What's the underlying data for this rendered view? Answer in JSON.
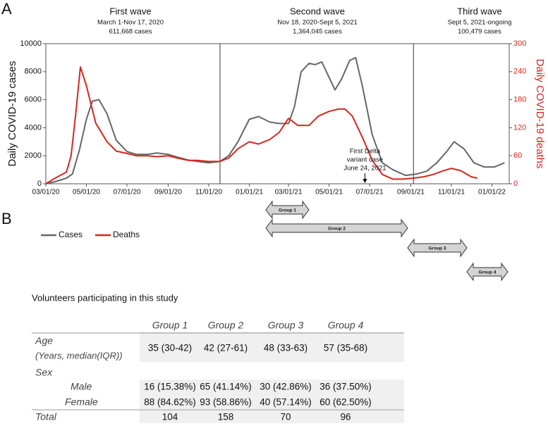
{
  "panel_labels": [
    "A",
    "B"
  ],
  "chart_data": {
    "type": "line",
    "y_label": "Daily COVID-19 cases",
    "y2_label": "Daily COVID-19 deaths",
    "xlim": [
      "2020-03-01",
      "2022-01-27"
    ],
    "xticks": [
      {
        "value": "2020-03-01",
        "label": "03/01/20"
      },
      {
        "value": "2020-05-01",
        "label": "05/01/20"
      },
      {
        "value": "2020-07-01",
        "label": "07/01/20"
      },
      {
        "value": "2020-09-01",
        "label": "09/01/20"
      },
      {
        "value": "2020-11-01",
        "label": "11/01/20"
      },
      {
        "value": "2021-01-01",
        "label": "01/01/21"
      },
      {
        "value": "2021-03-01",
        "label": "03/01/21"
      },
      {
        "value": "2021-05-01",
        "label": "05/01/21"
      },
      {
        "value": "2021-07-01",
        "label": "07/01/21"
      },
      {
        "value": "2021-09-01",
        "label": "09/01/21"
      },
      {
        "value": "2021-11-01",
        "label": "11/01/21"
      },
      {
        "value": "2022-01-01",
        "label": "01/01/22"
      }
    ],
    "ylim": [
      0,
      10000
    ],
    "yticks": [
      0,
      2000,
      4000,
      6000,
      8000,
      10000
    ],
    "y2lim": [
      0,
      300
    ],
    "y2ticks": [
      0,
      60,
      120,
      180,
      240,
      300
    ],
    "y2_color": "#d7261e",
    "vlines": [
      "2020-11-18",
      "2021-09-05"
    ],
    "waves": [
      {
        "title": "First wave",
        "lines": [
          "March 1-Nov 17, 2020",
          "611,668 cases"
        ]
      },
      {
        "title": "Second wave",
        "lines": [
          "Nov 18, 2020-Sept 5, 2021",
          "1,364,045 cases"
        ]
      },
      {
        "title": "Third wave",
        "lines": [
          "Sept 5, 2021-ongoing",
          "100,479 cases"
        ]
      }
    ],
    "annotation": {
      "x": "2021-06-24",
      "lines": [
        "First Delta",
        "variant case",
        "June 24, 2021"
      ]
    },
    "series": [
      {
        "name": "Cases",
        "color": "#666666",
        "x": [
          "2020-03-01",
          "2020-03-15",
          "2020-04-01",
          "2020-04-10",
          "2020-04-20",
          "2020-05-01",
          "2020-05-10",
          "2020-05-20",
          "2020-06-01",
          "2020-06-15",
          "2020-07-01",
          "2020-07-15",
          "2020-08-01",
          "2020-08-15",
          "2020-09-01",
          "2020-09-15",
          "2020-10-01",
          "2020-10-15",
          "2020-11-01",
          "2020-11-18",
          "2020-12-01",
          "2020-12-15",
          "2021-01-01",
          "2021-01-15",
          "2021-02-01",
          "2021-02-15",
          "2021-03-01",
          "2021-03-10",
          "2021-03-20",
          "2021-04-01",
          "2021-04-10",
          "2021-04-20",
          "2021-04-29",
          "2021-05-10",
          "2021-05-20",
          "2021-06-01",
          "2021-06-10",
          "2021-06-20",
          "2021-07-05",
          "2021-07-20",
          "2021-08-05",
          "2021-08-24",
          "2021-09-10",
          "2021-09-25",
          "2021-10-10",
          "2021-10-25",
          "2021-11-05",
          "2021-11-20",
          "2021-12-05",
          "2021-12-20",
          "2022-01-05",
          "2022-01-20"
        ],
        "values": [
          0,
          150,
          400,
          700,
          2300,
          4600,
          5900,
          6000,
          5000,
          3100,
          2300,
          2100,
          2100,
          2200,
          2100,
          1900,
          1700,
          1600,
          1500,
          1600,
          2000,
          3000,
          4600,
          4800,
          4400,
          4300,
          4300,
          5500,
          8000,
          8600,
          8500,
          8700,
          7800,
          6700,
          7500,
          8800,
          9000,
          7000,
          3500,
          1500,
          1000,
          600,
          700,
          900,
          1500,
          2300,
          3000,
          2500,
          1500,
          1200,
          1200,
          1500
        ]
      },
      {
        "name": "Deaths",
        "color": "#d7261e",
        "axis": "y2",
        "x": [
          "2020-03-01",
          "2020-03-15",
          "2020-04-01",
          "2020-04-08",
          "2020-04-15",
          "2020-04-22",
          "2020-05-01",
          "2020-05-15",
          "2020-06-01",
          "2020-06-15",
          "2020-07-01",
          "2020-07-15",
          "2020-08-01",
          "2020-08-15",
          "2020-09-01",
          "2020-09-15",
          "2020-10-01",
          "2020-10-15",
          "2020-11-01",
          "2020-11-18",
          "2020-12-01",
          "2020-12-15",
          "2021-01-01",
          "2021-01-15",
          "2021-02-01",
          "2021-02-15",
          "2021-03-01",
          "2021-03-15",
          "2021-04-01",
          "2021-04-15",
          "2021-05-01",
          "2021-05-15",
          "2021-05-25",
          "2021-06-05",
          "2021-06-20",
          "2021-07-05",
          "2021-07-20",
          "2021-08-05",
          "2021-08-20",
          "2021-09-05",
          "2021-09-20",
          "2021-10-05",
          "2021-10-20",
          "2021-11-01",
          "2021-11-15",
          "2021-12-01",
          "2021-12-10"
        ],
        "values": [
          0,
          12,
          25,
          60,
          150,
          250,
          210,
          130,
          90,
          70,
          65,
          60,
          60,
          58,
          60,
          55,
          50,
          50,
          48,
          48,
          55,
          75,
          90,
          85,
          95,
          110,
          140,
          125,
          125,
          145,
          155,
          160,
          160,
          145,
          100,
          50,
          20,
          10,
          10,
          12,
          15,
          20,
          28,
          33,
          28,
          15,
          12
        ]
      }
    ]
  },
  "legend": [
    "Cases",
    "Deaths"
  ],
  "groups": [
    "Group 1",
    "Group 2",
    "Group 3",
    "Group 4"
  ],
  "table": {
    "title": "Volunteers participating in this study",
    "columns": [
      "Group 1",
      "Group 2",
      "Group 3",
      "Group 4"
    ],
    "rows": [
      {
        "label": "Age",
        "sublabel": "(Years, median(IQR))",
        "cells": [
          "35 (30-42)",
          "42 (27-61)",
          "48 (33-63)",
          "57 (35-68)"
        ]
      },
      {
        "label": "Sex"
      },
      {
        "label": "Male",
        "cells": [
          "16 (15.38%)",
          "65 (41.14%)",
          "30 (42.86%)",
          "36 (37.50%)"
        ]
      },
      {
        "label": "Female",
        "cells": [
          "88 (84.62%)",
          "93 (58.86%)",
          "40 (57.14%)",
          "60 (62.50%)"
        ]
      },
      {
        "label": "Total",
        "cells": [
          104,
          158,
          70,
          96
        ]
      }
    ]
  }
}
